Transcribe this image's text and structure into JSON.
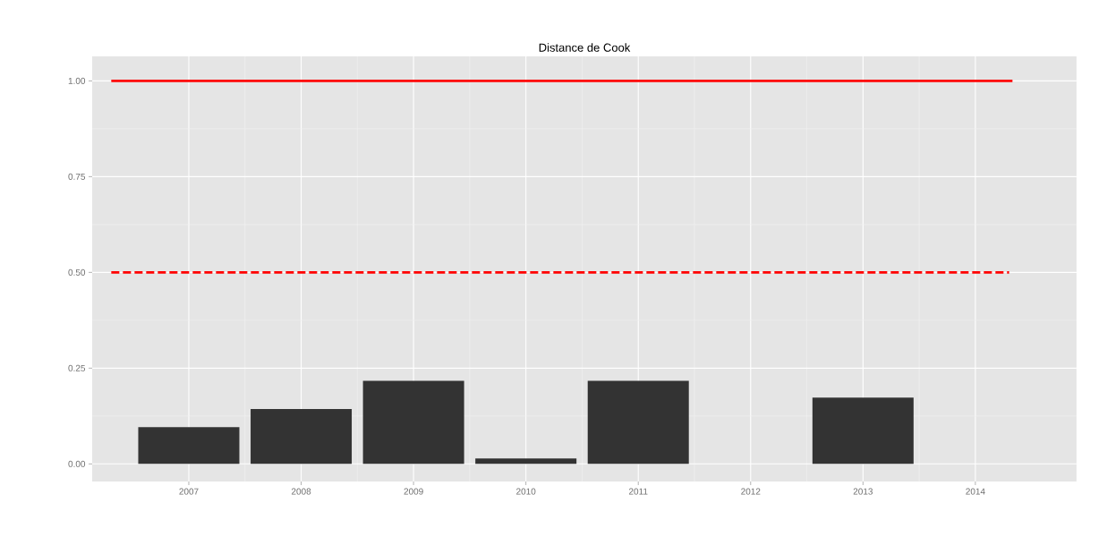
{
  "chart_data": {
    "type": "bar",
    "title": "Distance de Cook",
    "series": [
      {
        "color": "#333333",
        "x": [
          2007,
          2008,
          2009,
          2010,
          2011,
          2012,
          2013,
          2014
        ],
        "values": [
          0.096,
          0.143,
          0.217,
          0.014,
          0.217,
          0,
          0.173,
          0
        ]
      },
      {
        "type": "line",
        "color": "#ff0000",
        "line_style": "solid",
        "x": [
          2006.31,
          2014.33
        ],
        "values": [
          1,
          1
        ]
      },
      {
        "type": "line",
        "color": "#ff0000",
        "line_style": "dashed",
        "x": [
          2006.31,
          2014.3
        ],
        "values": [
          0.5,
          0.5
        ]
      }
    ],
    "xlim": [
      2006.14,
      2014.9
    ],
    "ylim": [
      -0.046,
      1.064
    ],
    "xticks": [
      2007,
      2008,
      2009,
      2010,
      2011,
      2012,
      2013,
      2014
    ],
    "yticks": [
      {
        "value": 0,
        "label": "0.00"
      },
      {
        "value": 0.25,
        "label": "0.25"
      },
      {
        "value": 0.5,
        "label": "0.50"
      },
      {
        "value": 0.75,
        "label": "0.75"
      },
      {
        "value": 1,
        "label": "1.00"
      }
    ],
    "grid": true
  }
}
